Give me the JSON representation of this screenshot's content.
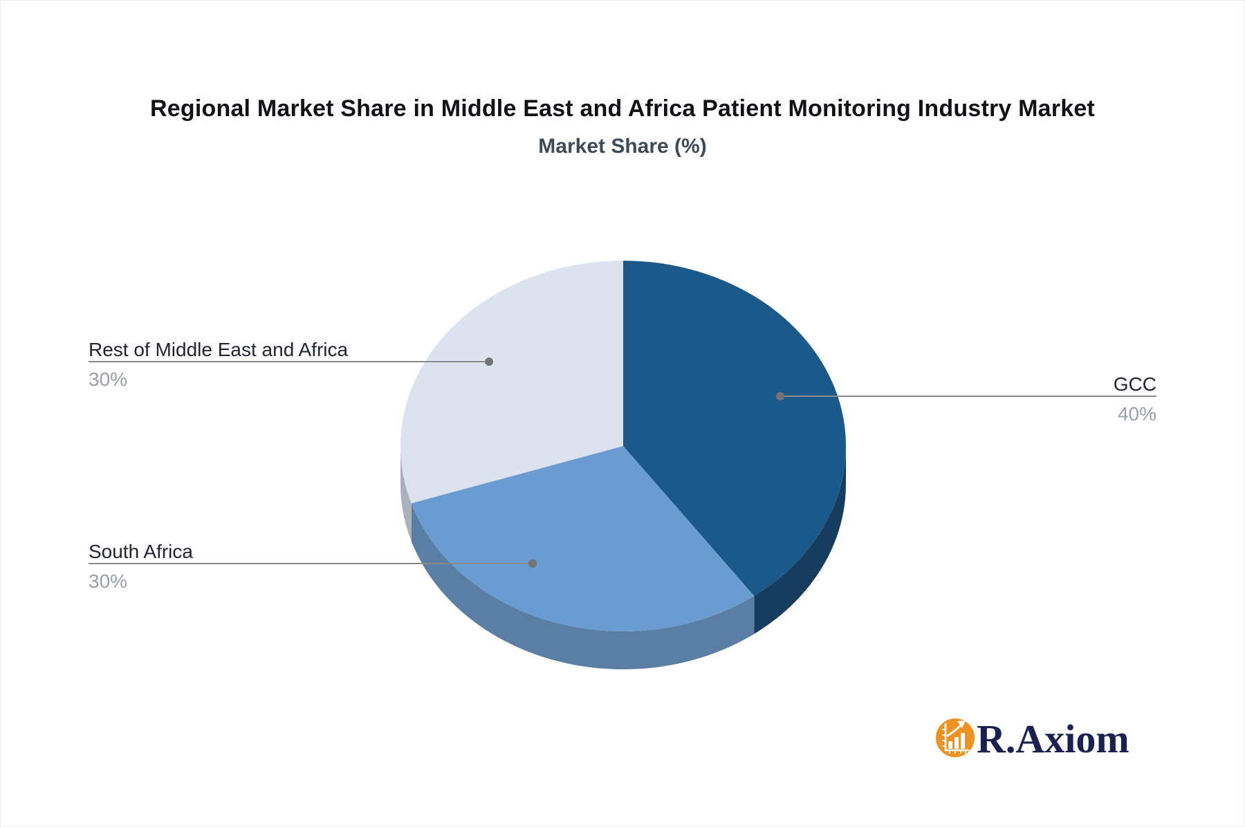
{
  "title": "Regional Market Share in Middle East and Africa Patient Monitoring Industry Market",
  "subtitle": "Market Share (%)",
  "chart_data": {
    "type": "pie",
    "title": "Regional Market Share in Middle East and Africa Patient Monitoring Industry Market",
    "subtitle": "Market Share (%)",
    "unit": "%",
    "effect": "3d",
    "direction": "clockwise",
    "start_angle_deg": 0,
    "legend": "none",
    "labels_position": "callout-lines",
    "slices": [
      {
        "label": "GCC",
        "value": 40,
        "display": "40%",
        "color": "#1c598b",
        "side_color": "#163c5e"
      },
      {
        "label": "South Africa",
        "value": 30,
        "display": "30%",
        "color": "#6b9cd1",
        "side_color": "#5a7ea4"
      },
      {
        "label": "Rest of Middle East and Africa",
        "value": 30,
        "display": "30%",
        "color": "#dde3ee",
        "side_color": "#a9b1bd"
      }
    ]
  },
  "logo": {
    "text": "R.Axiom",
    "icon": "bar-chart-growth-icon",
    "circle_color": "#f0921f",
    "text_color": "#1a2151"
  }
}
